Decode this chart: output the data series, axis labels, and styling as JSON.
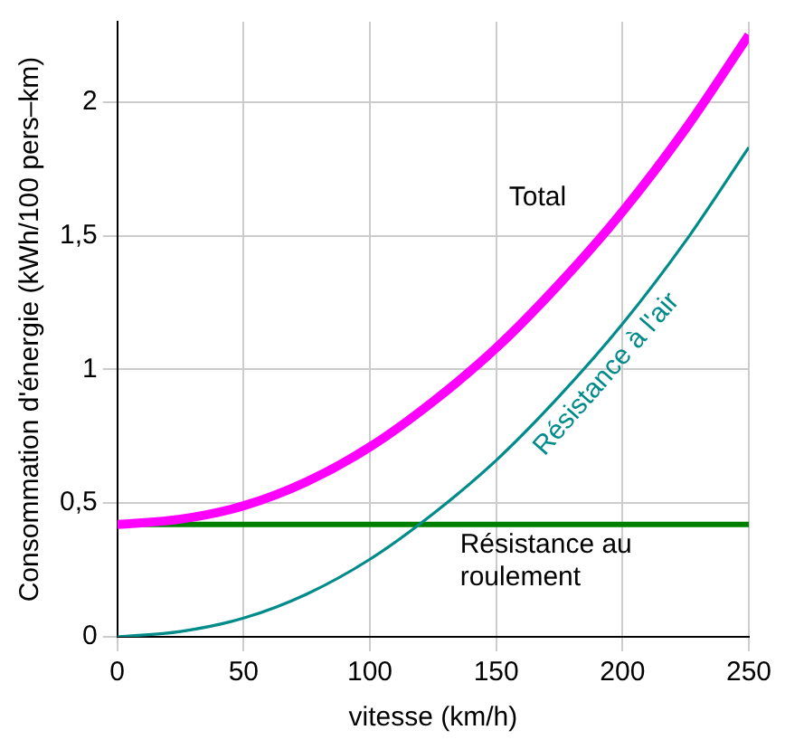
{
  "chart_data": {
    "type": "line",
    "xlabel": "vitesse (km/h)",
    "ylabel": "Consommation d'énergie (kWh/100 pers–km)",
    "x": [
      0,
      25,
      50,
      75,
      100,
      125,
      150,
      175,
      200,
      225,
      250
    ],
    "series": [
      {
        "name": "Total",
        "color": "#ff00ff",
        "values": [
          0.42,
          0.44,
          0.49,
          0.58,
          0.71,
          0.88,
          1.08,
          1.32,
          1.59,
          1.9,
          2.25
        ]
      },
      {
        "name": "Résistance à l'air",
        "color": "#008b8b",
        "values": [
          0,
          0.02,
          0.07,
          0.16,
          0.29,
          0.46,
          0.66,
          0.9,
          1.17,
          1.48,
          1.83
        ]
      },
      {
        "name": "Résistance au roulement",
        "color": "#008000",
        "values": [
          0.42,
          0.42,
          0.42,
          0.42,
          0.42,
          0.42,
          0.42,
          0.42,
          0.42,
          0.42,
          0.42
        ]
      }
    ],
    "xlim": [
      0,
      250
    ],
    "xticks": [
      0,
      50,
      100,
      150,
      200,
      250
    ],
    "ylim": [
      0,
      2.3
    ],
    "yticks": [
      0,
      {
        "value": 0.5,
        "label": "0,5"
      },
      1,
      {
        "value": 1.5,
        "label": "1,5"
      },
      2
    ],
    "grid": true,
    "legend": false,
    "marker": "none",
    "line_style": "solid"
  }
}
